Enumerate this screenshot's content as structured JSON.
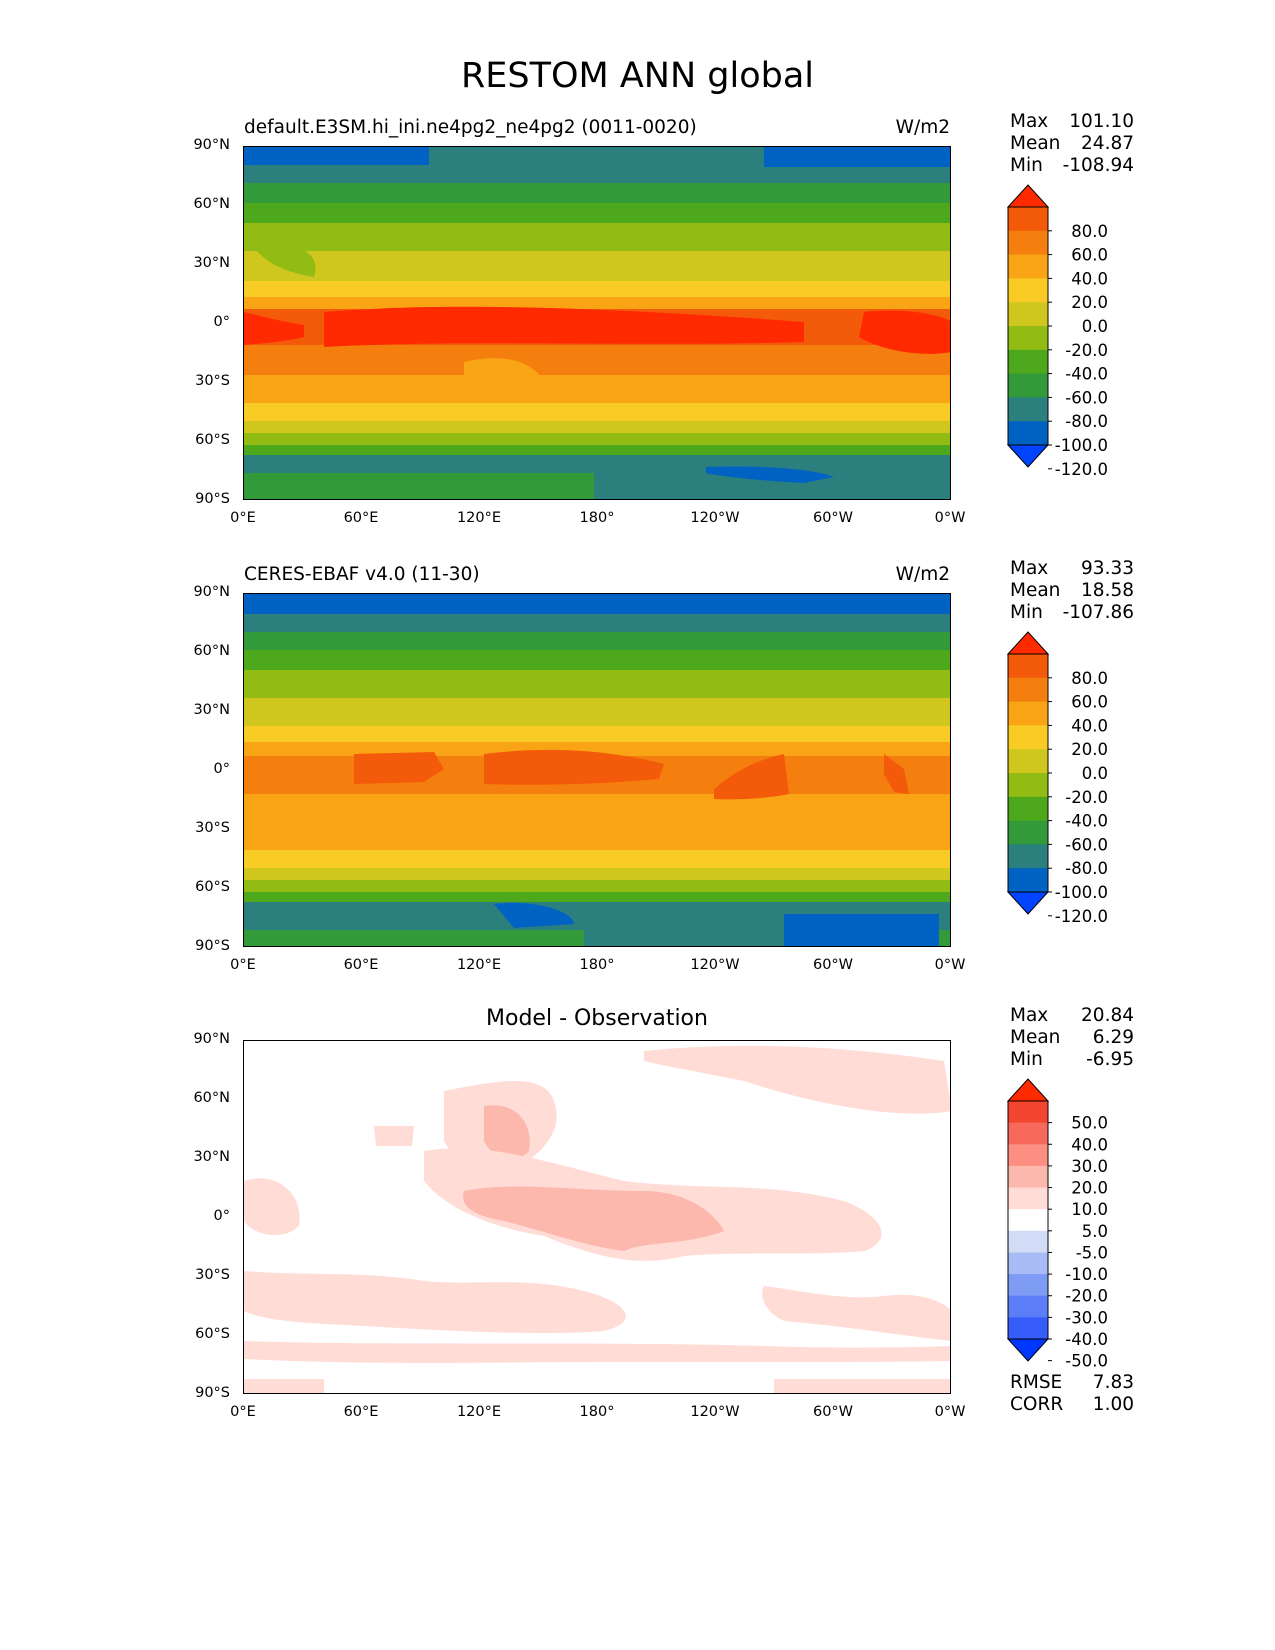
{
  "figure": {
    "title": "RESTOM ANN global"
  },
  "axes": {
    "yticks": [
      "90°N",
      "60°N",
      "30°N",
      "0°",
      "30°S",
      "60°S",
      "90°S"
    ],
    "xticks": [
      "0°E",
      "60°E",
      "120°E",
      "180°",
      "120°W",
      "60°W",
      "0°W"
    ]
  },
  "colors": {
    "full_scale": [
      "#0044ff",
      "#0063c4",
      "#2b7f7d",
      "#339a3a",
      "#4ea81b",
      "#92bc14",
      "#cfc71e",
      "#f8cb25",
      "#f9a414",
      "#f57f0e",
      "#f35a09",
      "#ff2a00"
    ],
    "diff_scale": [
      "#0037ff",
      "#365dfa",
      "#5b7df7",
      "#7f9cf5",
      "#a8bbf4",
      "#d3dcf6",
      "#ffffff",
      "#ffdcd6",
      "#fdb8ad",
      "#fc8f82",
      "#f7695b",
      "#f3452f",
      "#ff2a00"
    ]
  },
  "panels": [
    {
      "left_title": "default.E3SM.hi_ini.ne4pg2_ne4pg2 (0011-0020)",
      "right_title": "W/m2",
      "stats": {
        "max_label": "Max",
        "max": "101.10",
        "mean_label": "Mean",
        "mean": "24.87",
        "min_label": "Min",
        "min": "-108.94"
      },
      "colorbar_labels": [
        "80.0",
        "60.0",
        "40.0",
        "20.0",
        "0.0",
        "-20.0",
        "-40.0",
        "-60.0",
        "-80.0",
        "-100.0",
        "-120.0"
      ]
    },
    {
      "left_title": "CERES-EBAF v4.0 (11-30)",
      "right_title": "W/m2",
      "stats": {
        "max_label": "Max",
        "max": "93.33",
        "mean_label": "Mean",
        "mean": "18.58",
        "min_label": "Min",
        "min": "-107.86"
      },
      "colorbar_labels": [
        "80.0",
        "60.0",
        "40.0",
        "20.0",
        "0.0",
        "-20.0",
        "-40.0",
        "-60.0",
        "-80.0",
        "-100.0",
        "-120.0"
      ]
    },
    {
      "center_title": "Model - Observation",
      "stats": {
        "max_label": "Max",
        "max": "20.84",
        "mean_label": "Mean",
        "mean": "6.29",
        "min_label": "Min",
        "min": "-6.95"
      },
      "colorbar_labels": [
        "50.0",
        "40.0",
        "30.0",
        "20.0",
        "10.0",
        "5.0",
        "-5.0",
        "-10.0",
        "-20.0",
        "-30.0",
        "-40.0",
        "-50.0"
      ],
      "metrics": {
        "rmse_label": "RMSE",
        "rmse": "7.83",
        "corr_label": "CORR",
        "corr": "1.00"
      }
    }
  ]
}
